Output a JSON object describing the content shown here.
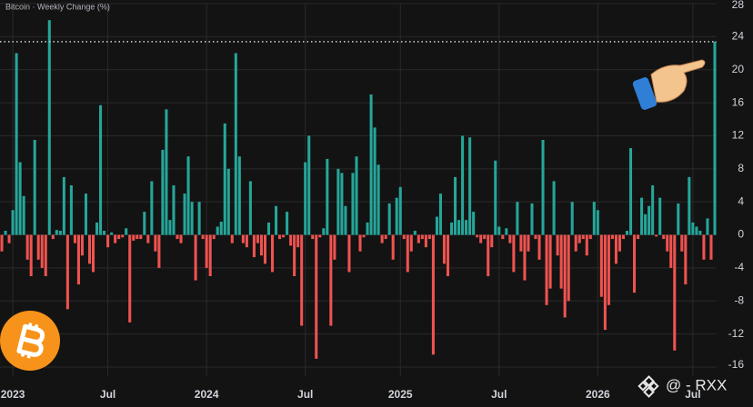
{
  "chart_data": {
    "type": "bar",
    "title": "Bitcoin · Weekly Change (%)",
    "watermark": "@ - RXX",
    "positive_color": "#26a69a",
    "negative_color": "#ef5350",
    "ylim": [
      -16,
      28
    ],
    "yticks": [
      28,
      24,
      20,
      16,
      12,
      8,
      4,
      0,
      -4,
      -8,
      -12,
      -16
    ],
    "grid": true,
    "reference_line": 23.4,
    "categories": [
      null,
      null,
      null,
      "2023",
      null,
      null,
      null,
      null,
      null,
      null,
      null,
      null,
      null,
      null,
      null,
      null,
      null,
      null,
      null,
      null,
      null,
      null,
      null,
      null,
      null,
      null,
      null,
      null,
      null,
      "Jul",
      null,
      null,
      null,
      null,
      null,
      null,
      null,
      null,
      null,
      null,
      null,
      null,
      null,
      null,
      null,
      null,
      null,
      null,
      null,
      null,
      null,
      null,
      null,
      null,
      null,
      null,
      "2024",
      null,
      null,
      null,
      null,
      null,
      null,
      null,
      null,
      null,
      null,
      null,
      null,
      null,
      null,
      null,
      null,
      null,
      null,
      null,
      null,
      null,
      null,
      null,
      null,
      null,
      null,
      "Jul",
      null,
      null,
      null,
      null,
      null,
      null,
      null,
      null,
      null,
      null,
      null,
      null,
      null,
      null,
      null,
      null,
      null,
      null,
      null,
      null,
      null,
      null,
      null,
      null,
      null,
      "2025",
      null,
      null,
      null,
      null,
      null,
      null,
      null,
      null,
      null,
      null,
      null,
      null,
      null,
      null,
      null,
      null,
      null,
      null,
      null,
      null,
      null,
      null,
      null,
      null,
      null,
      null,
      "Jul",
      null,
      null,
      null,
      null,
      null,
      null,
      null,
      null,
      null,
      null,
      null,
      null,
      null,
      null,
      null,
      null,
      null,
      null,
      null,
      null,
      null,
      null,
      null,
      null,
      null,
      null,
      "2026",
      null,
      null,
      null,
      null,
      null,
      null,
      null,
      null,
      null,
      null,
      null,
      null,
      null,
      null,
      null,
      null,
      null,
      null,
      null,
      null,
      null,
      null,
      null,
      null,
      null,
      "Jul",
      null,
      null,
      null,
      null,
      null,
      null
    ],
    "values": [
      -2,
      0.5,
      -1,
      3,
      22,
      8.8,
      4.7,
      -3,
      -5,
      11.5,
      -3,
      -4,
      -5,
      26,
      -0.5,
      0.6,
      0.5,
      7,
      -9,
      6,
      -1,
      -6,
      -2.5,
      5,
      -3.5,
      -4.5,
      1.5,
      15.7,
      0.5,
      -1.5,
      0.3,
      -1,
      -0.5,
      -0.3,
      0.8,
      -10.6,
      -0.7,
      -0.5,
      -0.5,
      2.8,
      -1,
      6.5,
      -2,
      -4,
      10.3,
      15.2,
      1.8,
      6,
      -0.5,
      -1,
      5,
      9.5,
      4,
      -5.5,
      4,
      -0.5,
      -4,
      -5,
      -0.5,
      1,
      1.6,
      13.5,
      8,
      -1,
      22,
      9.5,
      -1,
      -1.5,
      6.5,
      -2.7,
      -1,
      -2.5,
      -3.5,
      1.5,
      -4.5,
      3.5,
      -0.5,
      -0.3,
      2.8,
      -1.3,
      -5,
      -1.5,
      -11,
      8.8,
      12,
      -0.5,
      -15,
      -0.3,
      0.8,
      9.2,
      -11,
      -3,
      8,
      7.5,
      3.5,
      -4.5,
      7.5,
      9.5,
      -2,
      -0.3,
      1.5,
      17,
      13,
      8.5,
      -1,
      -0.5,
      3.8,
      -3,
      4.5,
      5.8,
      -0.5,
      -4.5,
      -2,
      0.5,
      -1,
      -0.5,
      -1.5,
      -0.5,
      -14.5,
      2.2,
      5,
      -3.5,
      -5,
      1.5,
      7,
      1.8,
      12,
      1.8,
      11.8,
      2.8,
      -0.3,
      -1,
      -0.5,
      -5,
      -1.5,
      9,
      1,
      -0.5,
      0.8,
      -1,
      -4.5,
      4,
      -2,
      -5.5,
      -2,
      3.8,
      -0.5,
      -3,
      11.5,
      -8.5,
      -6.5,
      6.5,
      -2.5,
      -6.5,
      -10,
      -8,
      4,
      -2,
      -1,
      -0.5,
      -2.5,
      -0.5,
      4,
      3,
      -7.5,
      -11.5,
      -8.5,
      -0.5,
      -3.5,
      -2,
      -0.5,
      0.5,
      10.5,
      -7,
      -0.5,
      4.5,
      2.5,
      3.5,
      6,
      -0.2,
      4.5,
      -0.5,
      -2,
      -4,
      -14,
      3.8,
      -2,
      -6,
      7,
      1.5,
      1,
      0.5,
      -3,
      2,
      -3,
      23.4
    ]
  }
}
